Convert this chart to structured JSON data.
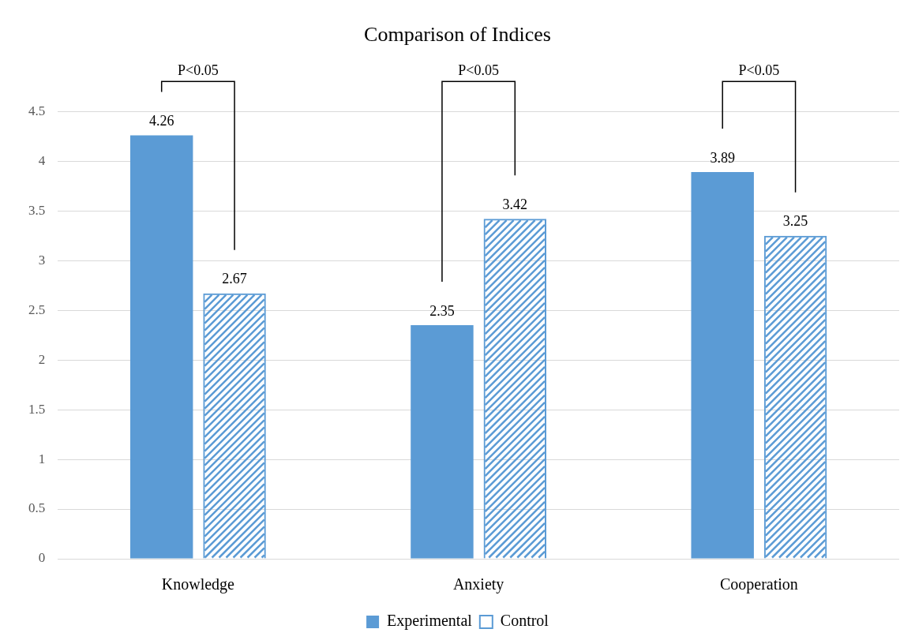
{
  "chart_data": {
    "type": "bar",
    "title": "Comparison of Indices",
    "categories": [
      "Knowledge",
      "Anxiety",
      "Cooperation"
    ],
    "series": [
      {
        "name": "Experimental",
        "color": "#5b9bd5",
        "values": [
          4.26,
          2.35,
          3.89
        ]
      },
      {
        "name": "Control",
        "color": "#5b9bd5",
        "values": [
          2.67,
          3.42,
          3.25
        ]
      }
    ],
    "ylim": [
      0,
      4.5
    ],
    "yticks": [
      0,
      0.5,
      1,
      1.5,
      2,
      2.5,
      3,
      3.5,
      4,
      4.5
    ],
    "grid": "y",
    "legend": "bottom",
    "data_labels": true,
    "annotations": [
      "P<0.05",
      "P<0.05",
      "P<0.05"
    ]
  }
}
